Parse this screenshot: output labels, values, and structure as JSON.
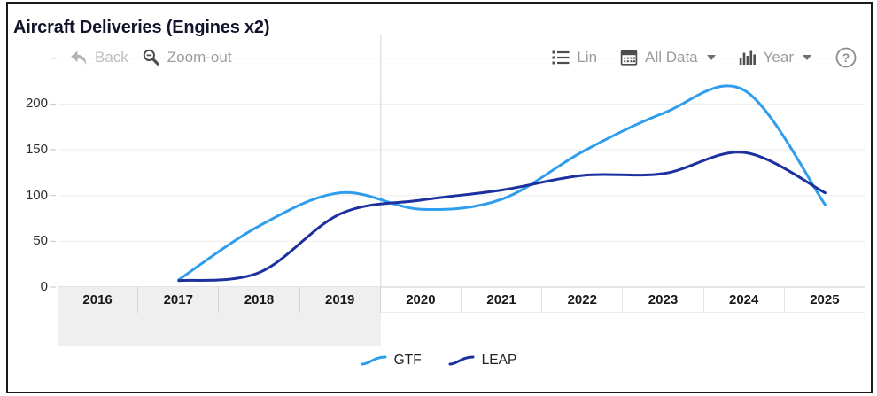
{
  "title": "Aircraft Deliveries (Engines x2)",
  "toolbar": {
    "dash": "-",
    "back_label": "Back",
    "zoom_out_label": "Zoom-out",
    "lin_label": "Lin",
    "all_data_label": "All Data",
    "year_label": "Year",
    "help_glyph": "?"
  },
  "icons": {
    "back": "undo-arrow-icon",
    "zoom_out": "magnifier-minus-icon",
    "lin": "list-icon",
    "all_data": "calendar-icon",
    "year": "bar-chart-icon",
    "help": "question-circle-icon"
  },
  "chart_data": {
    "type": "line",
    "title": "Aircraft Deliveries (Engines x2)",
    "x": [
      2017,
      2018,
      2019,
      2020,
      2021,
      2022,
      2023,
      2024,
      2025
    ],
    "series": [
      {
        "name": "GTF",
        "color": "#2f9ded",
        "values": [
          8,
          67,
          103,
          85,
          96,
          148,
          190,
          215,
          90
        ]
      },
      {
        "name": "LEAP",
        "color": "#1d309f",
        "values": [
          7,
          16,
          80,
          95,
          106,
          122,
          124,
          147,
          103
        ]
      }
    ],
    "axis_years": [
      "2016",
      "2017",
      "2018",
      "2019",
      "2020",
      "2021",
      "2022",
      "2023",
      "2024",
      "2025"
    ],
    "shaded_axis_years": [
      "2016",
      "2017",
      "2018",
      "2019"
    ],
    "yticks": [
      0,
      50,
      100,
      150,
      200
    ],
    "ylim": [
      0,
      250
    ],
    "xlabel": "",
    "ylabel": "",
    "grid": "horizontal",
    "legend_position": "bottom",
    "smoothed": true
  }
}
